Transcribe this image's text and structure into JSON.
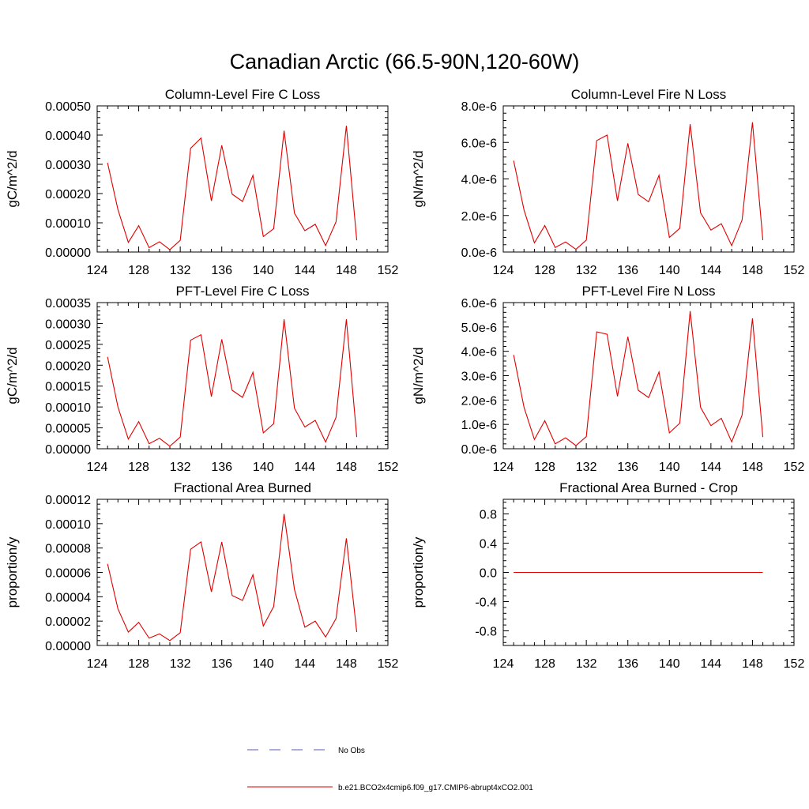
{
  "main_title": "Canadian Arctic (66.5-90N,120-60W)",
  "line_color": "#e00000",
  "obs_color": "#5a5ab4",
  "legend": {
    "obs_label": "No Obs",
    "model_label": "b.e21.BCO2x4cmip6.f09_g17.CMIP6-abrupt4xCO2.001"
  },
  "chart_data": [
    {
      "type": "line",
      "title": "Column-Level Fire C Loss",
      "ylabel": "gC/m^2/d",
      "xlim": [
        124,
        152
      ],
      "ylim": [
        0,
        0.0005
      ],
      "xticks": [
        124,
        128,
        132,
        136,
        140,
        144,
        148,
        152
      ],
      "yticks": [
        0,
        0.0001,
        0.0002,
        0.0003,
        0.0004,
        0.0005
      ],
      "ytick_labels": [
        "0.00000",
        "0.00010",
        "0.00020",
        "0.00030",
        "0.00040",
        "0.00050"
      ],
      "x": [
        125,
        126,
        127,
        128,
        129,
        130,
        131,
        132,
        133,
        134,
        135,
        136,
        137,
        138,
        139,
        140,
        141,
        142,
        143,
        144,
        145,
        146,
        147,
        148,
        149
      ],
      "series": [
        {
          "name": "b.e21.BCO2x4cmip6.f09_g17.CMIP6-abrupt4xCO2.001",
          "values": [
            0.000305,
            0.000145,
            3.3e-05,
            9e-05,
            1.5e-05,
            3.5e-05,
            8e-06,
            4e-05,
            0.000355,
            0.00039,
            0.000175,
            0.000365,
            0.000198,
            0.000173,
            0.000262,
            5.3e-05,
            8e-05,
            0.000415,
            0.000133,
            7.3e-05,
            9.5e-05,
            2.2e-05,
            0.000103,
            0.000432,
            4e-05
          ]
        }
      ]
    },
    {
      "type": "line",
      "title": "Column-Level Fire N Loss",
      "ylabel": "gN/m^2/d",
      "xlim": [
        124,
        152
      ],
      "ylim": [
        0,
        8e-06
      ],
      "xticks": [
        124,
        128,
        132,
        136,
        140,
        144,
        148,
        152
      ],
      "yticks": [
        0,
        2e-06,
        4e-06,
        6e-06,
        8e-06
      ],
      "ytick_labels": [
        "0.0e-6",
        "2.0e-6",
        "4.0e-6",
        "6.0e-6",
        "8.0e-6"
      ],
      "x": [
        125,
        126,
        127,
        128,
        129,
        130,
        131,
        132,
        133,
        134,
        135,
        136,
        137,
        138,
        139,
        140,
        141,
        142,
        143,
        144,
        145,
        146,
        147,
        148,
        149
      ],
      "series": [
        {
          "name": "b.e21.BCO2x4cmip6.f09_g17.CMIP6-abrupt4xCO2.001",
          "values": [
            5e-06,
            2.3e-06,
            5e-07,
            1.45e-06,
            2.5e-07,
            5.5e-07,
            1.5e-07,
            6.5e-07,
            6.1e-06,
            6.4e-06,
            2.8e-06,
            5.95e-06,
            3.15e-06,
            2.75e-06,
            4.2e-06,
            8e-07,
            1.3e-06,
            7e-06,
            2.15e-06,
            1.2e-06,
            1.55e-06,
            3.5e-07,
            1.75e-06,
            7.1e-06,
            6.5e-07
          ]
        }
      ]
    },
    {
      "type": "line",
      "title": "PFT-Level Fire C Loss",
      "ylabel": "gC/m^2/d",
      "xlim": [
        124,
        152
      ],
      "ylim": [
        0,
        0.00035
      ],
      "xticks": [
        124,
        128,
        132,
        136,
        140,
        144,
        148,
        152
      ],
      "yticks": [
        0,
        5e-05,
        0.0001,
        0.00015,
        0.0002,
        0.00025,
        0.0003,
        0.00035
      ],
      "ytick_labels": [
        "0.00000",
        "0.00005",
        "0.00010",
        "0.00015",
        "0.00020",
        "0.00025",
        "0.00030",
        "0.00035"
      ],
      "x": [
        125,
        126,
        127,
        128,
        129,
        130,
        131,
        132,
        133,
        134,
        135,
        136,
        137,
        138,
        139,
        140,
        141,
        142,
        143,
        144,
        145,
        146,
        147,
        148,
        149
      ],
      "series": [
        {
          "name": "b.e21.BCO2x4cmip6.f09_g17.CMIP6-abrupt4xCO2.001",
          "values": [
            0.00022,
            0.0001,
            2.3e-05,
            6.5e-05,
            1.2e-05,
            2.5e-05,
            6e-06,
            2.8e-05,
            0.00026,
            0.000273,
            0.000125,
            0.000262,
            0.00014,
            0.000123,
            0.000183,
            3.8e-05,
            6e-05,
            0.00031,
            9.7e-05,
            5.2e-05,
            6.8e-05,
            1.6e-05,
            7.5e-05,
            0.00031,
            2.8e-05
          ]
        }
      ]
    },
    {
      "type": "line",
      "title": "PFT-Level Fire N Loss",
      "ylabel": "gN/m^2/d",
      "xlim": [
        124,
        152
      ],
      "ylim": [
        0,
        6e-06
      ],
      "xticks": [
        124,
        128,
        132,
        136,
        140,
        144,
        148,
        152
      ],
      "yticks": [
        0,
        1e-06,
        2e-06,
        3e-06,
        4e-06,
        5e-06,
        6e-06
      ],
      "ytick_labels": [
        "0.0e-6",
        "1.0e-6",
        "2.0e-6",
        "3.0e-6",
        "4.0e-6",
        "5.0e-6",
        "6.0e-6"
      ],
      "x": [
        125,
        126,
        127,
        128,
        129,
        130,
        131,
        132,
        133,
        134,
        135,
        136,
        137,
        138,
        139,
        140,
        141,
        142,
        143,
        144,
        145,
        146,
        147,
        148,
        149
      ],
      "series": [
        {
          "name": "b.e21.BCO2x4cmip6.f09_g17.CMIP6-abrupt4xCO2.001",
          "values": [
            3.85e-06,
            1.7e-06,
            3.8e-07,
            1.15e-06,
            2e-07,
            4.5e-07,
            1.3e-07,
            5e-07,
            4.8e-06,
            4.7e-06,
            2.15e-06,
            4.6e-06,
            2.4e-06,
            2.1e-06,
            3.15e-06,
            6.5e-07,
            1.05e-06,
            5.65e-06,
            1.7e-06,
            9.5e-07,
            1.25e-06,
            2.8e-07,
            1.38e-06,
            5.35e-06,
            4.8e-07
          ]
        }
      ]
    },
    {
      "type": "line",
      "title": "Fractional Area Burned",
      "ylabel": "proportion/y",
      "xlim": [
        124,
        152
      ],
      "ylim": [
        0,
        0.00012
      ],
      "xticks": [
        124,
        128,
        132,
        136,
        140,
        144,
        148,
        152
      ],
      "yticks": [
        0,
        2e-05,
        4e-05,
        6e-05,
        8e-05,
        0.0001,
        0.00012
      ],
      "ytick_labels": [
        "0.00000",
        "0.00002",
        "0.00004",
        "0.00006",
        "0.00008",
        "0.00010",
        "0.00012"
      ],
      "x": [
        125,
        126,
        127,
        128,
        129,
        130,
        131,
        132,
        133,
        134,
        135,
        136,
        137,
        138,
        139,
        140,
        141,
        142,
        143,
        144,
        145,
        146,
        147,
        148,
        149
      ],
      "series": [
        {
          "name": "b.e21.BCO2x4cmip6.f09_g17.CMIP6-abrupt4xCO2.001",
          "values": [
            6.7e-05,
            3e-05,
            1.1e-05,
            1.9e-05,
            6e-06,
            9.5e-06,
            4e-06,
            1.05e-05,
            7.9e-05,
            8.5e-05,
            4.4e-05,
            8.5e-05,
            4.1e-05,
            3.7e-05,
            5.8e-05,
            1.6e-05,
            3.2e-05,
            0.000108,
            4.6e-05,
            1.5e-05,
            2e-05,
            7e-06,
            2.2e-05,
            8.8e-05,
            1.1e-05
          ]
        }
      ]
    },
    {
      "type": "line",
      "title": "Fractional Area Burned - Crop",
      "ylabel": "proportion/y",
      "xlim": [
        124,
        152
      ],
      "ylim": [
        -1.0,
        1.0
      ],
      "xticks": [
        124,
        128,
        132,
        136,
        140,
        144,
        148,
        152
      ],
      "yticks": [
        -0.8,
        -0.4,
        0.0,
        0.4,
        0.8
      ],
      "ytick_labels": [
        "-0.8",
        "-0.4",
        "0.0",
        "0.4",
        "0.8"
      ],
      "x": [
        125,
        126,
        127,
        128,
        129,
        130,
        131,
        132,
        133,
        134,
        135,
        136,
        137,
        138,
        139,
        140,
        141,
        142,
        143,
        144,
        145,
        146,
        147,
        148,
        149
      ],
      "series": [
        {
          "name": "b.e21.BCO2x4cmip6.f09_g17.CMIP6-abrupt4xCO2.001",
          "values": [
            0,
            0,
            0,
            0,
            0,
            0,
            0,
            0,
            0,
            0,
            0,
            0,
            0,
            0,
            0,
            0,
            0,
            0,
            0,
            0,
            0,
            0,
            0,
            0,
            0
          ]
        }
      ]
    }
  ]
}
